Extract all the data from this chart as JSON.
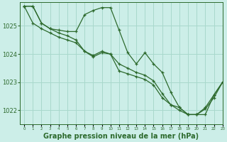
{
  "background_color": "#cceee8",
  "grid_color": "#a8d8cc",
  "line_color": "#2d6a2d",
  "marker_color": "#2d6a2d",
  "xlabel": "Graphe pression niveau de la mer (hPa)",
  "xlabel_fontsize": 7,
  "xlim": [
    -0.5,
    23
  ],
  "ylim": [
    1021.5,
    1025.85
  ],
  "yticks": [
    1022,
    1023,
    1024,
    1025
  ],
  "xticks": [
    0,
    1,
    2,
    3,
    4,
    5,
    6,
    7,
    8,
    9,
    10,
    11,
    12,
    13,
    14,
    15,
    16,
    17,
    18,
    19,
    20,
    21,
    22,
    23
  ],
  "series": [
    [
      1025.7,
      1025.7,
      1025.1,
      1024.9,
      1024.85,
      1024.8,
      1024.8,
      1025.4,
      1025.55,
      1025.65,
      1025.65,
      1024.85,
      1024.05,
      1023.65,
      1024.05,
      1023.65,
      1023.35,
      1022.65,
      1022.1,
      1021.85,
      1021.85,
      1021.85,
      1022.55,
      1023.0
    ],
    [
      1025.7,
      1025.7,
      1025.1,
      1024.9,
      1024.75,
      1024.65,
      1024.5,
      1024.1,
      1023.95,
      1024.1,
      1024.0,
      1023.65,
      1023.5,
      1023.35,
      1023.25,
      1023.05,
      1022.6,
      1022.2,
      1022.1,
      1021.85,
      1021.85,
      1022.1,
      1022.55,
      1023.0
    ],
    [
      1025.7,
      1025.1,
      1024.9,
      1024.75,
      1024.6,
      1024.5,
      1024.4,
      1024.1,
      1023.9,
      1024.05,
      1024.0,
      1023.4,
      1023.3,
      1023.2,
      1023.1,
      1022.9,
      1022.45,
      1022.2,
      1022.0,
      1021.85,
      1021.85,
      1022.05,
      1022.45,
      1023.0
    ]
  ]
}
